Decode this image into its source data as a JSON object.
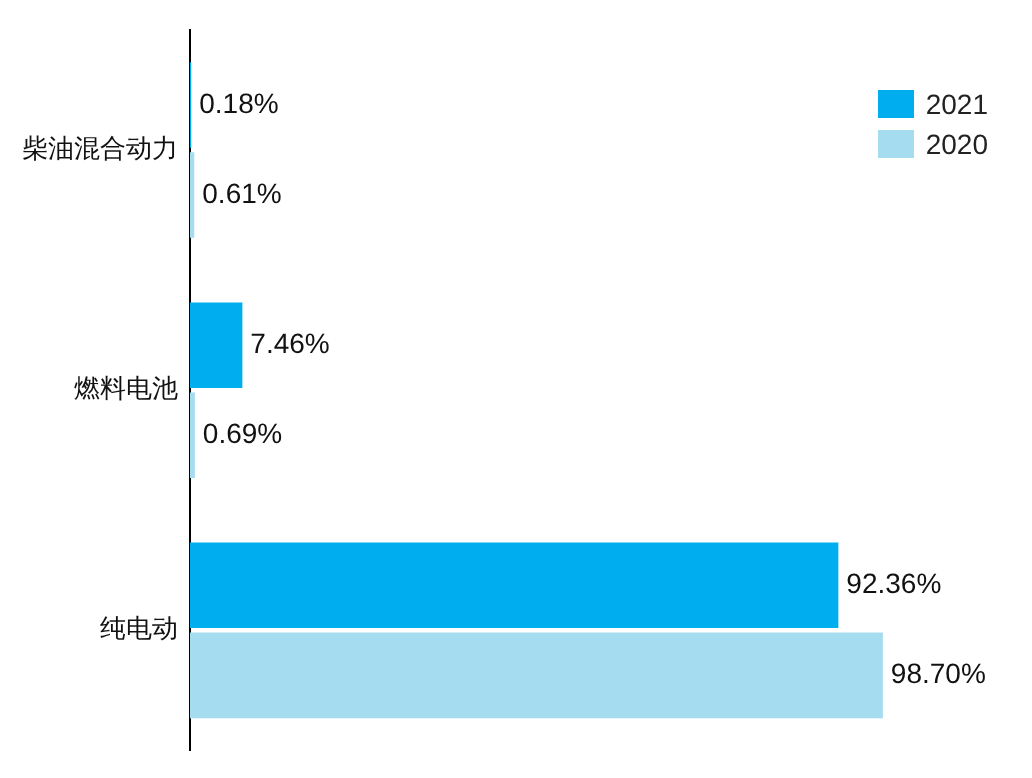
{
  "chart_data": {
    "type": "bar",
    "orientation": "horizontal",
    "categories": [
      "柴油混合动力",
      "燃料电池",
      "纯电动"
    ],
    "series": [
      {
        "name": "2021",
        "color": "#00aeef",
        "values": [
          0.18,
          7.46,
          92.36
        ],
        "value_labels": [
          "0.18%",
          "7.46%",
          "92.36%"
        ]
      },
      {
        "name": "2020",
        "color": "#a6dcf0",
        "values": [
          0.61,
          0.69,
          98.7
        ],
        "value_labels": [
          "0.61%",
          "0.69%",
          "98.70%"
        ]
      }
    ],
    "legend": "top right"
  }
}
